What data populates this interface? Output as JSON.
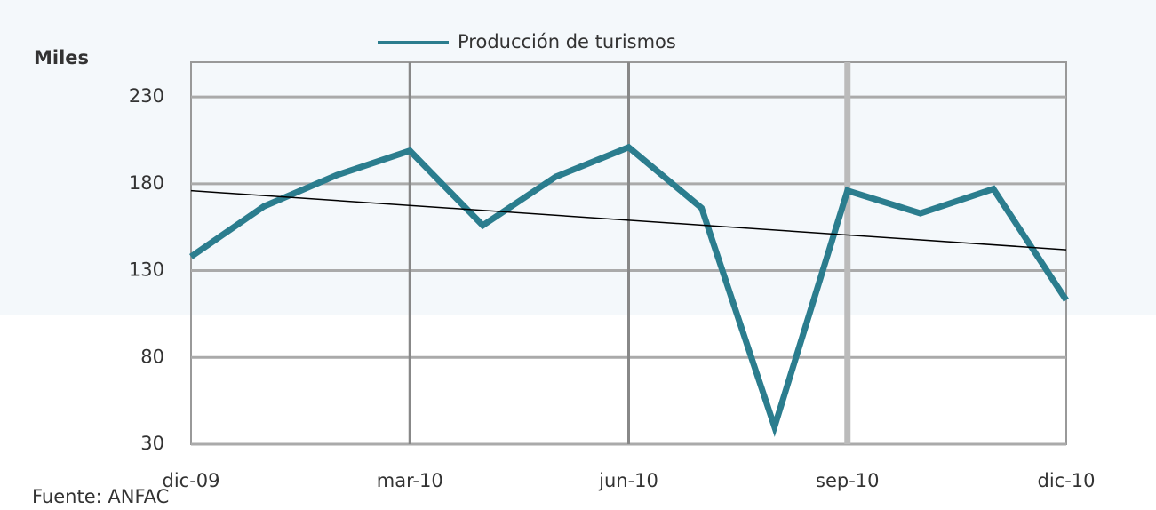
{
  "chart_data": {
    "type": "line",
    "y_axis_label": "Miles",
    "source": "Fuente: ANFAC",
    "categories": [
      "dic-09",
      null,
      null,
      "mar-10",
      null,
      null,
      "jun-10",
      null,
      null,
      "sep-10",
      null,
      null,
      "dic-10"
    ],
    "series": [
      {
        "name": "Producción de turismos",
        "color": "#2b7d8e",
        "values": [
          138,
          167,
          185,
          199,
          156,
          184,
          201,
          166,
          40,
          176,
          163,
          177,
          113
        ]
      }
    ],
    "trendline": {
      "color": "#000000",
      "values": [
        176,
        142
      ]
    },
    "ylim": [
      30,
      250
    ],
    "yticks": [
      30,
      80,
      130,
      180,
      230
    ],
    "grid": true,
    "legend": "top"
  }
}
